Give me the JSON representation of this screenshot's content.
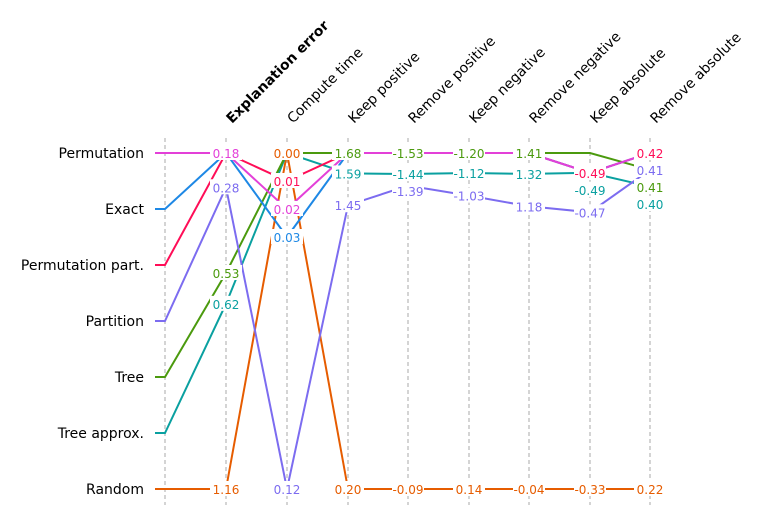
{
  "chart_data": {
    "type": "line",
    "subtype": "parallel-coordinates",
    "methods": [
      "Permutation",
      "Exact",
      "Permutation part.",
      "Partition",
      "Tree",
      "Tree approx.",
      "Random"
    ],
    "colors": {
      "Permutation": "#e340d8",
      "Exact": "#1e88e5",
      "Permutation part.": "#ff0d57",
      "Partition": "#7c6cf0",
      "Tree": "#4b9a0e",
      "Tree approx.": "#0aa0a0",
      "Random": "#e65c00"
    },
    "metrics": [
      {
        "label": "Explanation error",
        "bold": true,
        "higher_is_better": false,
        "values": [
          0.18,
          0.18,
          0.18,
          0.28,
          0.53,
          0.62,
          1.16
        ],
        "labels": [
          "0.18",
          "",
          "",
          "0.28",
          "0.53",
          "0.62",
          "1.16"
        ]
      },
      {
        "label": "Compute time",
        "higher_is_better": false,
        "values": [
          0.02,
          0.03,
          0.01,
          0.12,
          0.0,
          0.0,
          0.0
        ],
        "labels": [
          "0.02",
          "0.03",
          "0.01",
          "0.12",
          "",
          "",
          "0.00"
        ]
      },
      {
        "label": "Keep positive",
        "higher_is_better": true,
        "values": [
          1.68,
          1.68,
          1.68,
          1.45,
          1.68,
          1.59,
          0.2
        ],
        "labels": [
          "",
          "",
          "",
          "1.45",
          "1.68",
          "1.59",
          "0.20"
        ]
      },
      {
        "label": "Remove positive",
        "higher_is_better": false,
        "values": [
          -1.53,
          -1.53,
          -1.53,
          -1.39,
          -1.53,
          -1.44,
          -0.09
        ],
        "labels": [
          "",
          "",
          "",
          "-1.39",
          "-1.53",
          "-1.44",
          "-0.09"
        ]
      },
      {
        "label": "Keep negative",
        "higher_is_better": false,
        "values": [
          -1.2,
          -1.2,
          -1.2,
          -1.03,
          -1.2,
          -1.12,
          0.14
        ],
        "labels": [
          "",
          "",
          "",
          "-1.03",
          "-1.20",
          "-1.12",
          "0.14"
        ]
      },
      {
        "label": "Remove negative",
        "higher_is_better": true,
        "values": [
          1.41,
          1.41,
          1.41,
          1.18,
          1.41,
          1.32,
          -0.04
        ],
        "labels": [
          "",
          "",
          "",
          "1.18",
          "1.41",
          "1.32",
          "-0.04"
        ]
      },
      {
        "label": "Keep absolute",
        "higher_is_better": false,
        "values": [
          -0.49,
          -0.49,
          -0.49,
          -0.47,
          -0.5,
          -0.49,
          -0.33
        ],
        "labels": [
          "",
          "",
          "-0.49",
          "-0.47",
          "",
          "-0.49",
          "-0.33"
        ]
      },
      {
        "label": "Remove absolute",
        "higher_is_better": true,
        "values": [
          0.42,
          0.42,
          0.42,
          0.41,
          0.41,
          0.4,
          0.22
        ],
        "labels": [
          "",
          "",
          "0.42",
          "0.41",
          "0.41",
          "0.40",
          "0.22"
        ]
      }
    ]
  }
}
